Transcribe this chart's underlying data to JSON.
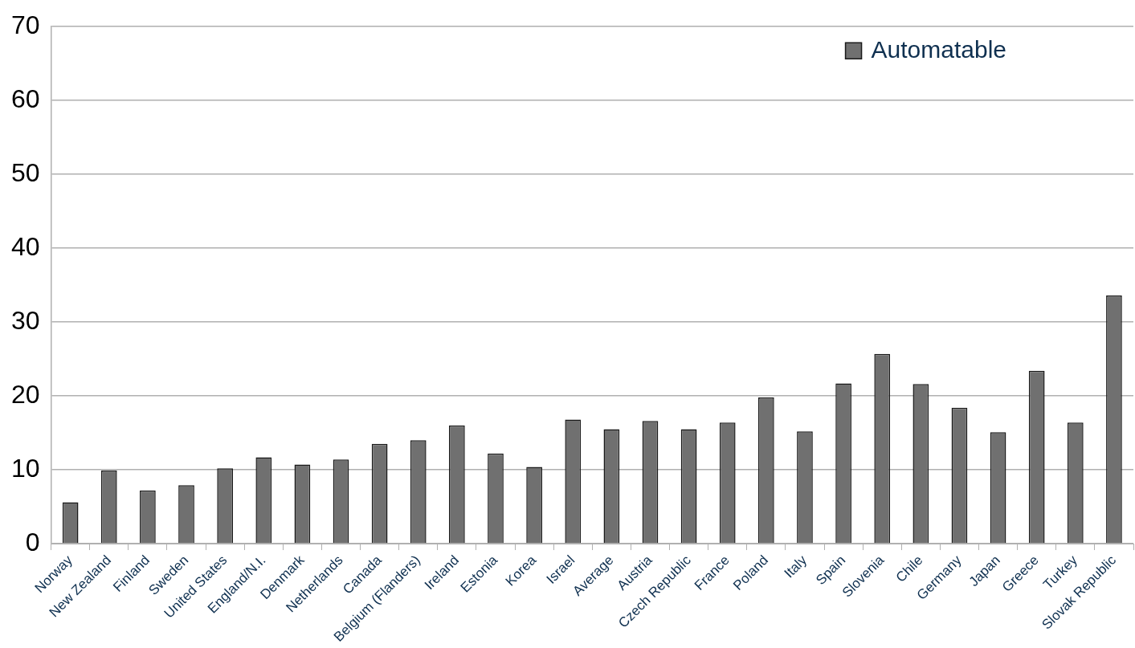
{
  "chart_data": {
    "type": "bar",
    "categories": [
      "Norway",
      "New Zealand",
      "Finland",
      "Sweden",
      "United States",
      "England/N.I.",
      "Denmark",
      "Netherlands",
      "Canada",
      "Belgium (Flanders)",
      "Ireland",
      "Estonia",
      "Korea",
      "Israel",
      "Average",
      "Austria",
      "Czech Republic",
      "France",
      "Poland",
      "Italy",
      "Spain",
      "Slovenia",
      "Chile",
      "Germany",
      "Japan",
      "Greece",
      "Turkey",
      "Slovak Republic"
    ],
    "series": [
      {
        "name": "Automatable",
        "color": "#707070",
        "values": [
          5.6,
          9.9,
          7.2,
          7.9,
          10.2,
          11.7,
          10.7,
          11.4,
          13.5,
          14.0,
          16.0,
          12.2,
          10.4,
          16.8,
          15.5,
          16.6,
          15.5,
          16.4,
          19.8,
          15.2,
          21.7,
          25.7,
          21.6,
          18.4,
          15.1,
          23.4,
          16.4,
          33.6
        ]
      }
    ],
    "ylim": [
      0,
      70
    ],
    "yticks": [
      0,
      10,
      20,
      30,
      40,
      50,
      60,
      70
    ],
    "grid": "y",
    "legend": "top right"
  }
}
